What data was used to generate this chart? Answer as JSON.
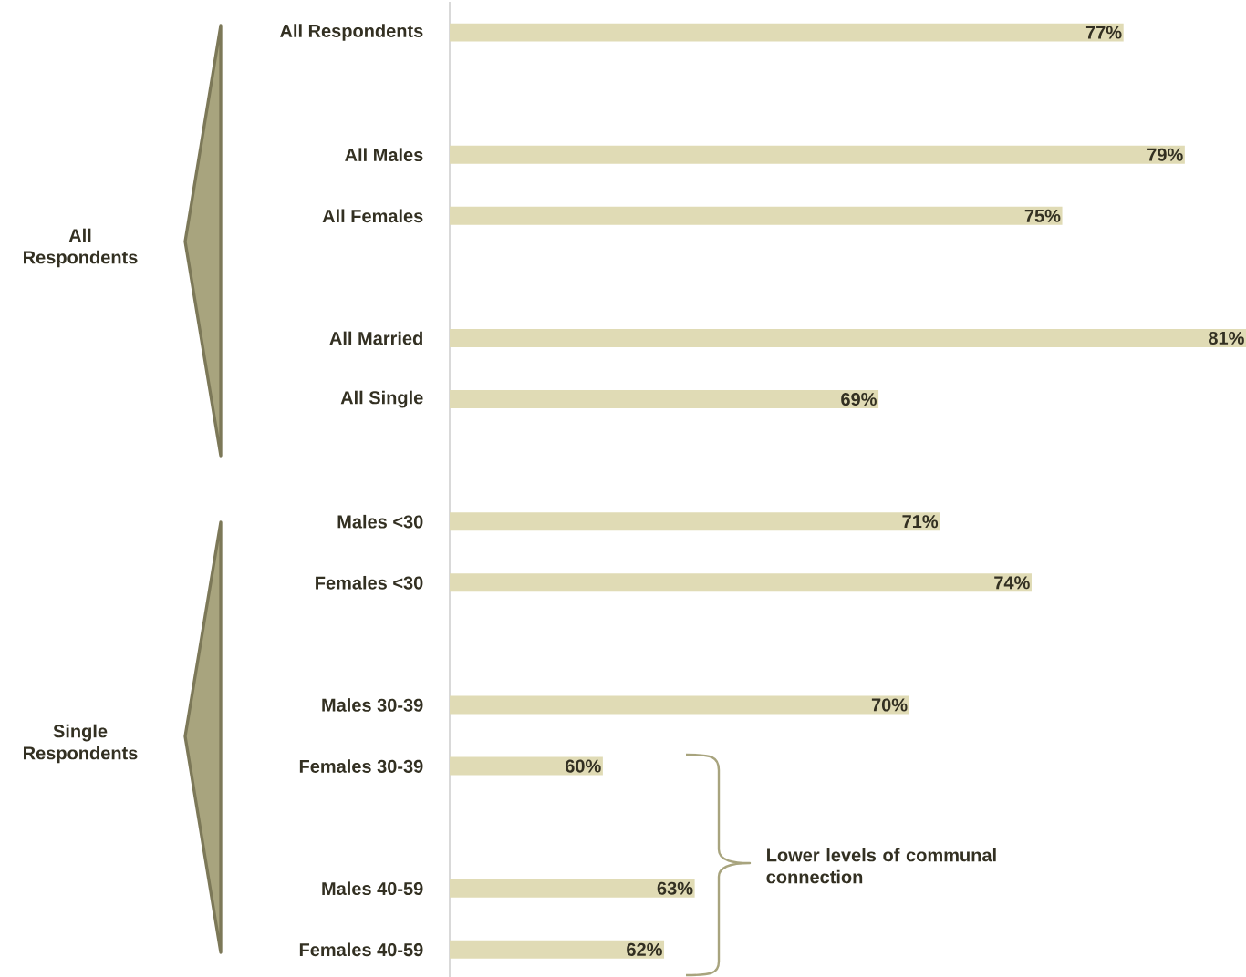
{
  "chart_data": {
    "type": "bar",
    "orientation": "horizontal",
    "categories": [
      "All Respondents",
      null,
      "All Males",
      "All Females",
      null,
      "All Married",
      "All Single",
      null,
      "Males <30",
      "Females <30",
      null,
      "Males 30-39",
      "Females 30-39",
      null,
      "Males 40-59",
      "Females 40-59"
    ],
    "values": [
      77,
      null,
      79,
      75,
      null,
      81,
      69,
      null,
      71,
      74,
      null,
      70,
      60,
      null,
      63,
      62
    ],
    "value_labels": [
      "77%",
      null,
      "79%",
      "75%",
      null,
      "81%",
      "69%",
      null,
      "71%",
      "74%",
      null,
      "70%",
      "60%",
      null,
      "63%",
      "62%"
    ],
    "color": "#e0dbb5",
    "xlim": [
      55,
      81
    ],
    "tick_labels": "y",
    "annotations": [
      "All Respondents",
      "Single Respondents",
      "Lower levels of communal connection"
    ]
  }
}
